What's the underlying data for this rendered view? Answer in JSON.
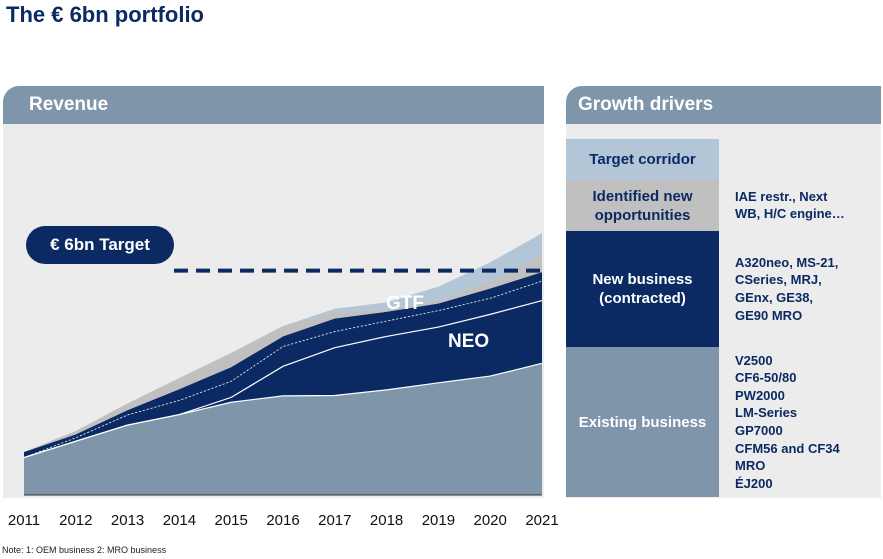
{
  "title": "The € 6bn portfolio",
  "revenue_header": "Revenue",
  "growth_header": "Growth drivers",
  "note": "Note: 1: OEM business 2: MRO business",
  "chart_data": {
    "type": "area",
    "stacked": true,
    "x": [
      2011,
      2012,
      2013,
      2014,
      2015,
      2016,
      2017,
      2018,
      2019,
      2020,
      2021
    ],
    "series_labels_shown": [
      "NEO",
      "GTF"
    ],
    "target_label": "€ 6bn Target",
    "series": [
      {
        "color": "#7e95aa",
        "values": [
          1.0,
          1.44,
          1.87,
          2.15,
          2.48,
          2.65,
          2.66,
          2.81,
          3.0,
          3.18,
          3.52
        ]
      },
      {
        "name": "NEO",
        "color": "#0b2a63",
        "values": [
          0.0,
          0.0,
          0.0,
          0.0,
          0.13,
          0.79,
          1.28,
          1.43,
          1.49,
          1.65,
          1.68
        ]
      },
      {
        "name": "GTF",
        "color": "#0b2a63",
        "values": [
          0.0,
          0.09,
          0.27,
          0.38,
          0.43,
          0.53,
          0.43,
          0.41,
          0.44,
          0.43,
          0.52
        ]
      },
      {
        "color": "#0b2a63",
        "values": [
          0.15,
          0.09,
          0.13,
          0.3,
          0.38,
          0.27,
          0.35,
          0.25,
          0.19,
          0.26,
          0.24
        ]
      },
      {
        "color": "#c0c0c0",
        "values": [
          0.0,
          0.09,
          0.18,
          0.3,
          0.38,
          0.28,
          0.18,
          0.07,
          0.08,
          0.2,
          0.44
        ]
      },
      {
        "color": "#b3c6d7",
        "values": [
          0.0,
          0.0,
          0.0,
          0.0,
          0.0,
          0.0,
          0.08,
          0.18,
          0.37,
          0.5,
          0.6
        ]
      }
    ],
    "target_value": 6.0
  },
  "growth_drivers": [
    {
      "label": "Target corridor",
      "items": [],
      "bg": "#b3c6d7",
      "fg": "#0b2a63"
    },
    {
      "label": "Identified new opportunities",
      "items": [
        "IAE restr., Next",
        "WB, H/C engine…"
      ],
      "bg": "#c0c0c0",
      "fg": "#0b2a63"
    },
    {
      "label": "New business (contracted)",
      "items": [
        "A320neo, MS-21,",
        "CSeries, MRJ,",
        "GEnx, GE38,",
        "GE90 MRO"
      ],
      "bg": "#0b2a63",
      "fg": "#ffffff"
    },
    {
      "label": "Existing business",
      "items": [
        "V2500",
        "CF6-50/80",
        "PW2000",
        "LM-Series",
        "GP7000",
        "CFM56 and CF34",
        "MRO",
        "ÉJ200"
      ],
      "bg": "#7e95aa",
      "fg": "#ffffff"
    }
  ]
}
